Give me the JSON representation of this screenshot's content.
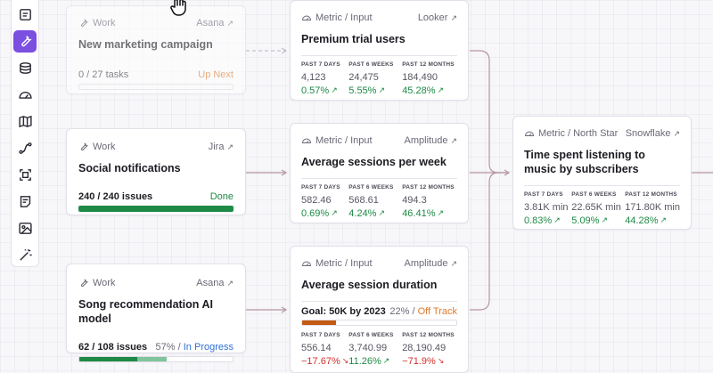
{
  "colors": {
    "accent": "#7b4fe0",
    "progress_done": "#1e8a46",
    "progress_partial": "#7fc49b",
    "progress_offtrack": "#c35a12",
    "up": "#1e8a46",
    "down": "#d0312d",
    "connector": "#b597a3"
  },
  "toolbar": {
    "tools": [
      {
        "name": "document-icon",
        "active": false
      },
      {
        "name": "wrench-icon",
        "active": true
      },
      {
        "name": "database-icon",
        "active": false
      },
      {
        "name": "gauge-icon",
        "active": false
      },
      {
        "name": "map-icon",
        "active": false
      },
      {
        "name": "route-icon",
        "active": false
      },
      {
        "name": "focus-frame-icon",
        "active": false
      },
      {
        "name": "note-icon",
        "active": false
      },
      {
        "name": "image-icon",
        "active": false
      },
      {
        "name": "magic-wand-icon",
        "active": false
      }
    ]
  },
  "work_cards": [
    {
      "type": "Work",
      "source": "Asana",
      "title": "New marketing campaign",
      "progress_text": "0 / 27 tasks",
      "progress_pct": "",
      "status": "Up Next",
      "status_color": "orange",
      "progress": 0,
      "partial": 0
    },
    {
      "type": "Work",
      "source": "Jira",
      "title": "Social notifications",
      "progress_text": "240 / 240 issues",
      "progress_pct": "",
      "status": "Done",
      "status_color": "green",
      "progress": 1,
      "partial": 0
    },
    {
      "type": "Work",
      "source": "Asana",
      "title": "Song recommendation AI model",
      "progress_text": "62 / 108 issues",
      "progress_pct": "57% /",
      "status": "In Progress",
      "status_color": "blue",
      "progress": 0.38,
      "partial": 0.57
    }
  ],
  "metric_cards": [
    {
      "type": "Metric / Input",
      "source": "Looker",
      "title": "Premium trial users",
      "metrics": [
        {
          "label": "PAST 7 DAYS",
          "value": "4,123",
          "change": "0.57%",
          "dir": "up"
        },
        {
          "label": "PAST 6 WEEKS",
          "value": "24,475",
          "change": "5.55%",
          "dir": "up"
        },
        {
          "label": "PAST 12 MONTHS",
          "value": "184,490",
          "change": "45.28%",
          "dir": "up"
        }
      ]
    },
    {
      "type": "Metric / Input",
      "source": "Amplitude",
      "title": "Average sessions per week",
      "metrics": [
        {
          "label": "PAST 7 DAYS",
          "value": "582.46",
          "change": "0.69%",
          "dir": "up"
        },
        {
          "label": "PAST 6 WEEKS",
          "value": "568.61",
          "change": "4.24%",
          "dir": "up"
        },
        {
          "label": "PAST 12 MONTHS",
          "value": "494.3",
          "change": "46.41%",
          "dir": "up"
        }
      ]
    },
    {
      "type": "Metric / Input",
      "source": "Amplitude",
      "title": "Average session duration",
      "goal": {
        "text": "Goal: 50K by 2023",
        "pct": "22% /",
        "status": "Off Track",
        "progress": 0.22
      },
      "metrics": [
        {
          "label": "PAST 7 DAYS",
          "value": "556.14",
          "change": "−17.67%",
          "dir": "down"
        },
        {
          "label": "PAST 6 WEEKS",
          "value": "3,740.99",
          "change": "11.26%",
          "dir": "up"
        },
        {
          "label": "PAST 12 MONTHS",
          "value": "28,190.49",
          "change": "−71.9%",
          "dir": "down"
        }
      ]
    }
  ],
  "north_star": {
    "type": "Metric / North Star",
    "source": "Snowflake",
    "title": "Time spent listening to music by subscribers",
    "metrics": [
      {
        "label": "PAST 7 DAYS",
        "value": "3.81K min",
        "change": "0.83%",
        "dir": "up"
      },
      {
        "label": "PAST 6 WEEKS",
        "value": "22.65K min",
        "change": "5.09%",
        "dir": "up"
      },
      {
        "label": "PAST 12 MONTHS",
        "value": "171.80K min",
        "change": "44.28%",
        "dir": "up"
      }
    ]
  }
}
